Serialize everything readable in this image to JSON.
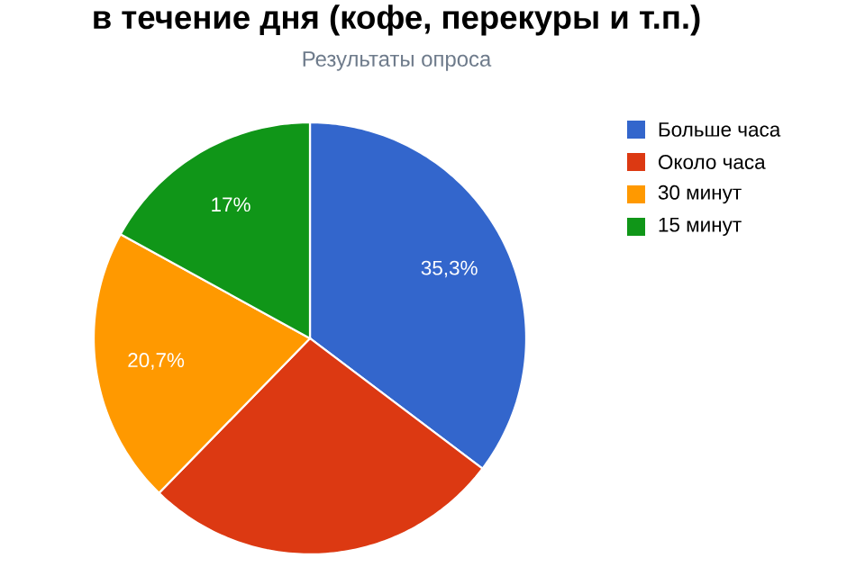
{
  "chart_data": {
    "type": "pie",
    "title": "в течение дня (кофе, перекуры и т.п.)",
    "subtitle": "Результаты опроса",
    "categories": [
      "Больше часа",
      "Около часа",
      "30 минут",
      "15 минут"
    ],
    "values": [
      35.3,
      27,
      20.7,
      17
    ],
    "colors": [
      "#3366cc",
      "#dc3912",
      "#ff9900",
      "#109618"
    ],
    "value_labels": [
      "35,3%",
      null,
      "20,7%",
      "17%"
    ],
    "legend": "right"
  }
}
